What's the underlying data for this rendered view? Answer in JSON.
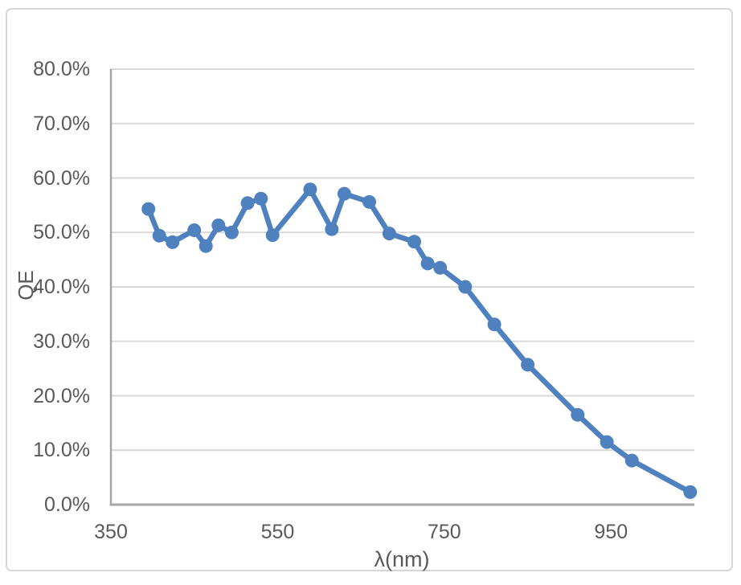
{
  "page": {
    "background": "#ffffff"
  },
  "colors": {
    "line": "#4e81bd",
    "marker": "#4e81bd",
    "gridline": "#d9d9d9",
    "axis": "#a6a6a6",
    "tick_text": "#595959",
    "chart_border": "#d7d7d7"
  },
  "chart_data": {
    "type": "line",
    "xlabel": "λ(nm)",
    "ylabel": "QE",
    "xlim": [
      350,
      1050
    ],
    "ylim_percent": [
      0,
      80
    ],
    "grid": true,
    "legend": "none",
    "x_ticks": [
      {
        "value": 350,
        "label": "350"
      },
      {
        "value": 550,
        "label": "550"
      },
      {
        "value": 750,
        "label": "750"
      },
      {
        "value": 950,
        "label": "950"
      }
    ],
    "y_ticks": [
      {
        "value": 0,
        "label": "0.0%"
      },
      {
        "value": 10,
        "label": "10.0%"
      },
      {
        "value": 20,
        "label": "20.0%"
      },
      {
        "value": 30,
        "label": "30.0%"
      },
      {
        "value": 40,
        "label": "40.0%"
      },
      {
        "value": 50,
        "label": "50.0%"
      },
      {
        "value": 60,
        "label": "60.0%"
      },
      {
        "value": 70,
        "label": "70.0%"
      },
      {
        "value": 80,
        "label": "80.0%"
      }
    ],
    "series": [
      {
        "name": "QE",
        "marker": "circle",
        "points": [
          {
            "lambda_nm": 395,
            "qe_percent": 54.3
          },
          {
            "lambda_nm": 408,
            "qe_percent": 49.4
          },
          {
            "lambda_nm": 424,
            "qe_percent": 48.2
          },
          {
            "lambda_nm": 450,
            "qe_percent": 50.4
          },
          {
            "lambda_nm": 464,
            "qe_percent": 47.5
          },
          {
            "lambda_nm": 479,
            "qe_percent": 51.3
          },
          {
            "lambda_nm": 495,
            "qe_percent": 50.0
          },
          {
            "lambda_nm": 514,
            "qe_percent": 55.4
          },
          {
            "lambda_nm": 530,
            "qe_percent": 56.2
          },
          {
            "lambda_nm": 544,
            "qe_percent": 49.5
          },
          {
            "lambda_nm": 589,
            "qe_percent": 57.9
          },
          {
            "lambda_nm": 615,
            "qe_percent": 50.6
          },
          {
            "lambda_nm": 630,
            "qe_percent": 57.1
          },
          {
            "lambda_nm": 660,
            "qe_percent": 55.6
          },
          {
            "lambda_nm": 684,
            "qe_percent": 49.8
          },
          {
            "lambda_nm": 714,
            "qe_percent": 48.3
          },
          {
            "lambda_nm": 730,
            "qe_percent": 44.3
          },
          {
            "lambda_nm": 745,
            "qe_percent": 43.5
          },
          {
            "lambda_nm": 775,
            "qe_percent": 40.0
          },
          {
            "lambda_nm": 810,
            "qe_percent": 33.1
          },
          {
            "lambda_nm": 850,
            "qe_percent": 25.7
          },
          {
            "lambda_nm": 910,
            "qe_percent": 16.5
          },
          {
            "lambda_nm": 945,
            "qe_percent": 11.5
          },
          {
            "lambda_nm": 975,
            "qe_percent": 8.1
          },
          {
            "lambda_nm": 1045,
            "qe_percent": 2.3
          }
        ]
      }
    ]
  }
}
